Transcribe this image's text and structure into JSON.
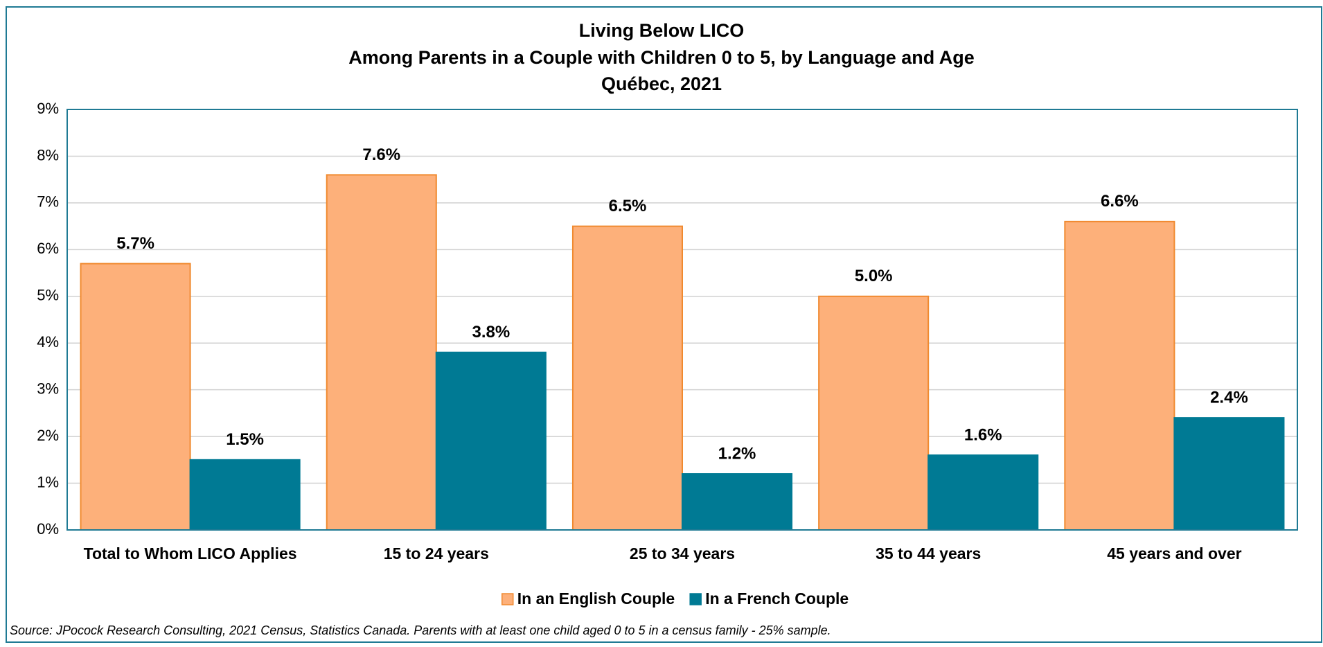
{
  "chart_data": {
    "type": "bar",
    "title": [
      "Living Below LICO",
      "Among Parents in a Couple with Children 0 to 5, by Language and Age",
      "Québec, 2021"
    ],
    "categories": [
      "Total to Whom LICO Applies",
      "15 to 24 years",
      "25 to 34 years",
      "35 to 44 years",
      "45 years and over"
    ],
    "series": [
      {
        "name": "In an English Couple",
        "color": "#fdb07a",
        "stroke": "#f08a30",
        "values": [
          5.7,
          7.6,
          6.5,
          5.0,
          6.6
        ],
        "value_labels": [
          "5.7%",
          "7.6%",
          "6.5%",
          "5.0%",
          "6.6%"
        ]
      },
      {
        "name": "In a French Couple",
        "color": "#007a94",
        "stroke": "#007a94",
        "values": [
          1.5,
          3.8,
          1.2,
          1.6,
          2.4
        ],
        "value_labels": [
          "1.5%",
          "3.8%",
          "1.2%",
          "1.6%",
          "2.4%"
        ]
      }
    ],
    "ylim": [
      0,
      9
    ],
    "yticks": [
      {
        "value": 0,
        "label": "0%"
      },
      {
        "value": 1,
        "label": "1%"
      },
      {
        "value": 2,
        "label": "2%"
      },
      {
        "value": 3,
        "label": "3%"
      },
      {
        "value": 4,
        "label": "4%"
      },
      {
        "value": 5,
        "label": "5%"
      },
      {
        "value": 6,
        "label": "6%"
      },
      {
        "value": 7,
        "label": "7%"
      },
      {
        "value": 8,
        "label": "8%"
      },
      {
        "value": 9,
        "label": "9%"
      }
    ],
    "grid": true,
    "legend": "bottom",
    "source": "Source: JPocock Research Consulting, 2021 Census, Statistics Canada. Parents with at least one child aged 0 to 5 in a census family - 25% sample."
  }
}
